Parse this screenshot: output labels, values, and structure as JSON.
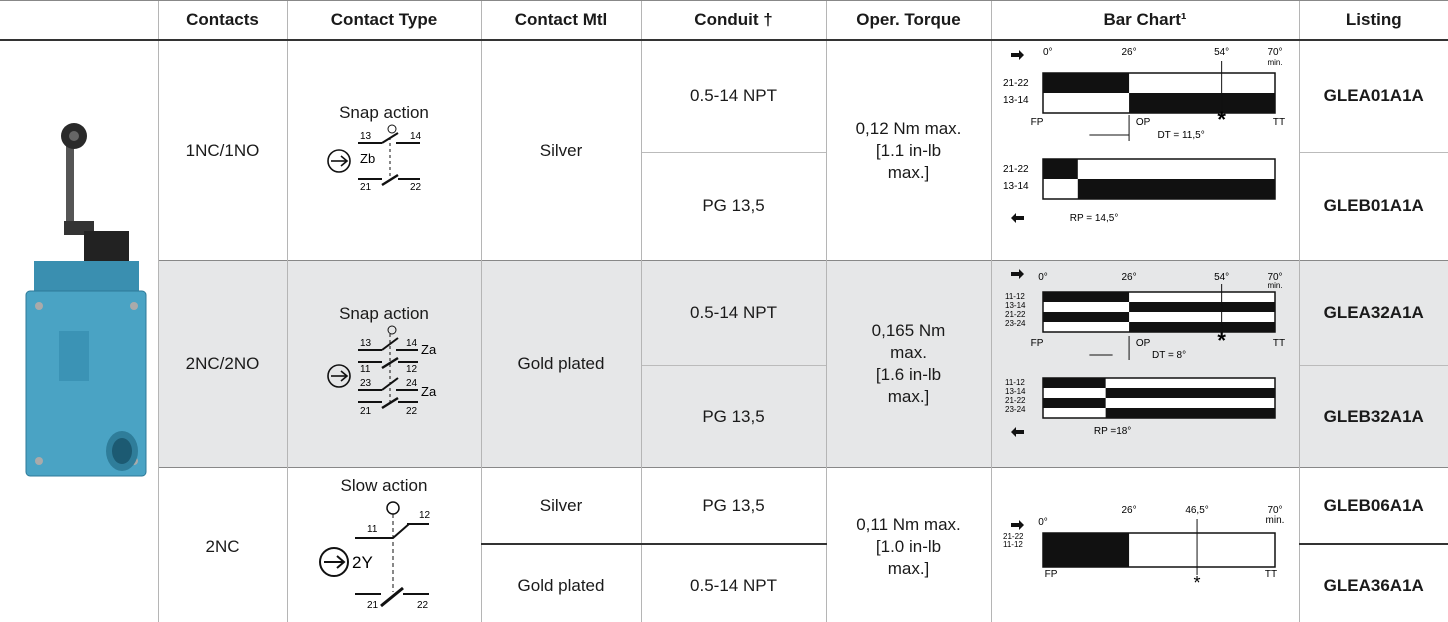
{
  "table": {
    "header": [
      "Contacts",
      "Contact Type",
      "Contact Mtl",
      "Conduit †",
      "Oper. Torque",
      "Bar Chart¹",
      "Listing"
    ],
    "rows": [
      {
        "contacts": "1NC/1NO",
        "contact_type": "Snap action",
        "symbol": [
          "13",
          "14",
          "Zb",
          "21",
          "22"
        ],
        "contact_mtl": [
          "Silver"
        ],
        "conduits": [
          "0.5-14 NPT",
          "PG 13,5"
        ],
        "torque": [
          "0,12 Nm max.",
          "[1.1 in-lb",
          "max.]"
        ],
        "bar_chart": {
          "angles": [
            "0°",
            "26°",
            "54°",
            "70°",
            "min."
          ],
          "circuits": [
            "21-22",
            "13-14"
          ],
          "points": [
            "FP",
            "OP",
            "TT"
          ],
          "dt": "DT = 11,5°",
          "rp": "RP = 14,5°"
        },
        "listings": [
          "GLEA01A1A",
          "GLEB01A1A"
        ]
      },
      {
        "contacts": "2NC/2NO",
        "contact_type": "Snap action",
        "symbol": [
          "13",
          "14",
          "Za",
          "11",
          "12",
          "23",
          "24",
          "Za",
          "21",
          "22"
        ],
        "contact_mtl": [
          "Gold plated"
        ],
        "conduits": [
          "0.5-14 NPT",
          "PG 13,5"
        ],
        "torque": [
          "0,165 Nm",
          "max.",
          "[1.6 in-lb",
          "max.]"
        ],
        "bar_chart": {
          "angles": [
            "0°",
            "26°",
            "54°",
            "70°",
            "min."
          ],
          "circuits": [
            "11-12",
            "13-14",
            "21-22",
            "23-24"
          ],
          "points": [
            "FP",
            "OP",
            "TT"
          ],
          "dt": "DT = 8°",
          "rp": "RP =18°"
        },
        "listings": [
          "GLEA32A1A",
          "GLEB32A1A"
        ]
      },
      {
        "contacts": "2NC",
        "contact_type": "Slow action",
        "symbol": [
          "11",
          "12",
          "2Y",
          "21",
          "22"
        ],
        "contact_mtl": [
          "Silver",
          "Gold plated"
        ],
        "conduits": [
          "PG 13,5",
          "0.5-14 NPT"
        ],
        "torque": [
          "0,11 Nm max.",
          "[1.0 in-lb",
          "max.]"
        ],
        "bar_chart": {
          "angles": [
            "0°",
            "26°",
            "46,5°",
            "70°",
            "min."
          ],
          "circuits": [
            "21-22",
            "11-12"
          ],
          "points": [
            "FP",
            "TT"
          ]
        },
        "listings": [
          "GLEB06A1A",
          "GLEA36A1A"
        ]
      }
    ]
  }
}
